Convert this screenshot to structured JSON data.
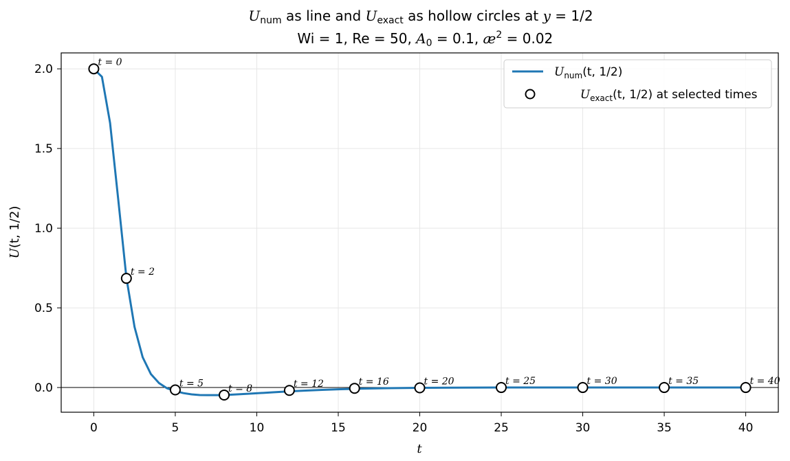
{
  "chart_data": {
    "type": "line",
    "title": {
      "line1": {
        "u_symbol": "U",
        "num_sub": "num",
        "mid_text": " as line and ",
        "exact_sub": "exact",
        "tail_text": " as hollow circles at ",
        "y_symbol": "y",
        "y_value": " = 1/2"
      },
      "line2": {
        "wi": "Wi = 1,",
        "re": "Re = 50,",
        "a_symbol": "A",
        "a_sub": "0",
        "a_value": " = 0.1,",
        "ae_symbol": "æ",
        "ae_sup": "2",
        "ae_value": " = 0.02"
      }
    },
    "xlabel": "t",
    "ylabel": {
      "symbol": "U",
      "args": "(t, 1/2)"
    },
    "xlim": [
      -2.0,
      42.0
    ],
    "ylim": [
      -0.155,
      2.1
    ],
    "xticks": [
      0,
      5,
      10,
      15,
      20,
      25,
      30,
      35,
      40
    ],
    "yticks": [
      0.0,
      0.5,
      1.0,
      1.5,
      2.0
    ],
    "ytick_labels": [
      "0.0",
      "0.5",
      "1.0",
      "1.5",
      "2.0"
    ],
    "grid": true,
    "zero_line": true,
    "legend": {
      "placement": "top-right",
      "entries": [
        {
          "symbol": "U",
          "sub": "num",
          "rest": "(t, 1/2)"
        },
        {
          "symbol": "U",
          "sub": "exact",
          "rest": "(t, 1/2) at selected times"
        }
      ]
    },
    "series": [
      {
        "style": "line",
        "color": "#1f77b4",
        "x": [
          0,
          0.5,
          1,
          1.5,
          2,
          2.5,
          3,
          3.5,
          4,
          4.5,
          5,
          5.5,
          6,
          6.5,
          7,
          7.5,
          8,
          9,
          10,
          11,
          12,
          13,
          14,
          15,
          16,
          18,
          20,
          22,
          25,
          28,
          30,
          33,
          35,
          38,
          40
        ],
        "y": [
          2.0,
          1.95,
          1.66,
          1.18,
          0.69,
          0.38,
          0.19,
          0.085,
          0.028,
          -0.005,
          -0.022,
          -0.035,
          -0.043,
          -0.047,
          -0.048,
          -0.048,
          -0.047,
          -0.042,
          -0.036,
          -0.03,
          -0.024,
          -0.019,
          -0.015,
          -0.011,
          -0.008,
          -0.004,
          -0.002,
          -0.001,
          0.0,
          0.0,
          0.0,
          0.0,
          0.0,
          0.0,
          0.0
        ]
      },
      {
        "style": "markers",
        "marker": "hollow-circle",
        "points": [
          {
            "t": 0,
            "u": 2.0,
            "label": "t = 0"
          },
          {
            "t": 2,
            "u": 0.685,
            "label": "t = 2"
          },
          {
            "t": 5,
            "u": -0.015,
            "label": "t = 5"
          },
          {
            "t": 8,
            "u": -0.047,
            "label": "t = 8"
          },
          {
            "t": 12,
            "u": -0.018,
            "label": "t = 12"
          },
          {
            "t": 16,
            "u": -0.005,
            "label": "t = 16"
          },
          {
            "t": 20,
            "u": -0.002,
            "label": "t = 20"
          },
          {
            "t": 25,
            "u": 0.0,
            "label": "t = 25"
          },
          {
            "t": 30,
            "u": 0.0,
            "label": "t = 30"
          },
          {
            "t": 35,
            "u": 0.0,
            "label": "t = 35"
          },
          {
            "t": 40,
            "u": 0.0,
            "label": "t = 40"
          }
        ]
      }
    ]
  }
}
